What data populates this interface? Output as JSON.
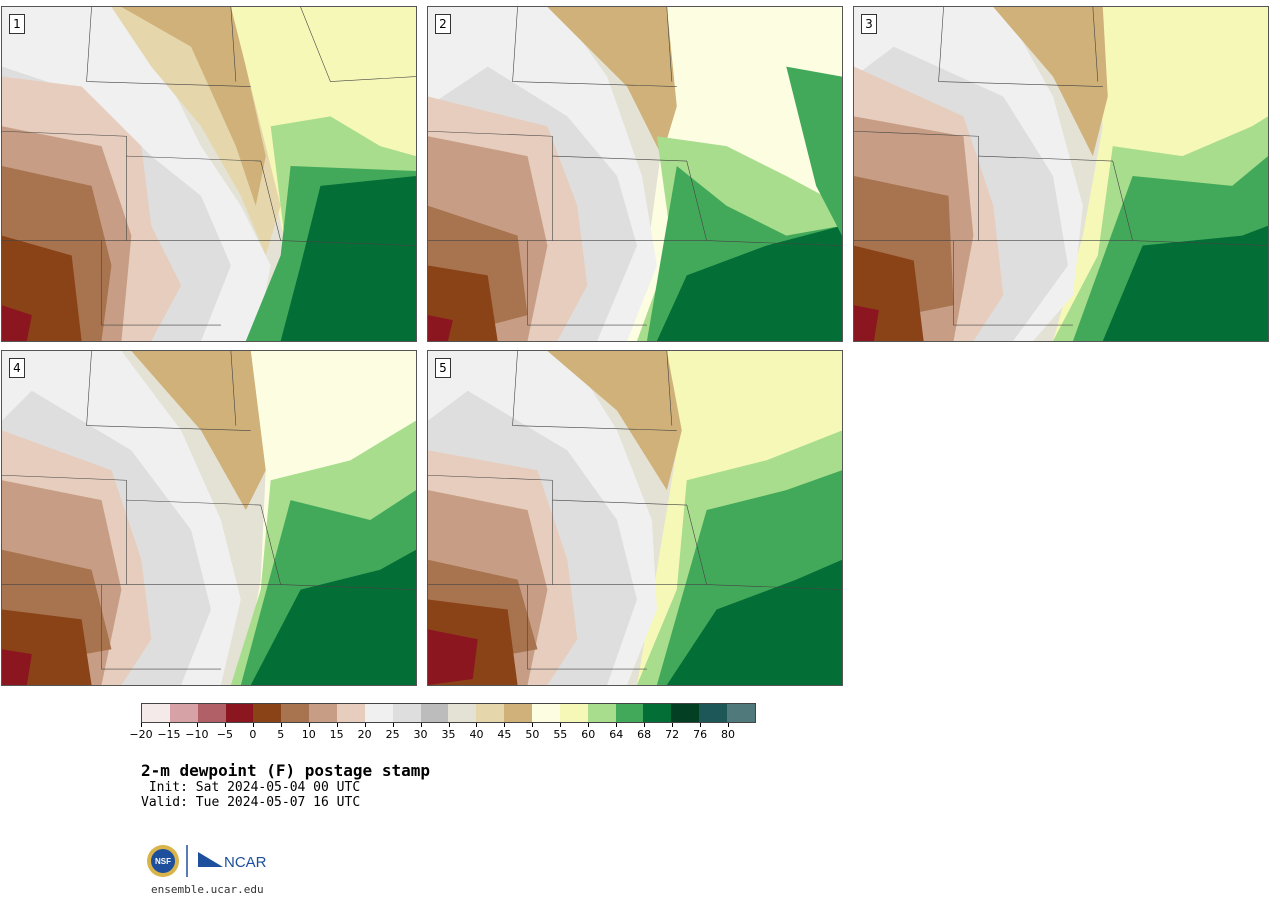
{
  "panels": [
    {
      "label": "1"
    },
    {
      "label": "2"
    },
    {
      "label": "3"
    },
    {
      "label": "4"
    },
    {
      "label": "5"
    }
  ],
  "colorbar": {
    "colors": [
      "#f4eaea",
      "#d6a2a6",
      "#b06066",
      "#8b1620",
      "#8a4316",
      "#a8734f",
      "#c79e85",
      "#e6cdbd",
      "#f0f0f0",
      "#dedede",
      "#bcbcbc",
      "#e4e2d5",
      "#e6d6ac",
      "#cfb179",
      "#fdfde2",
      "#f6f8b7",
      "#a7dd8d",
      "#43a95a",
      "#036f37",
      "#033f22",
      "#1d5757",
      "#50797b"
    ],
    "ticks": [
      "-20",
      "-15",
      "-10",
      "-5",
      "0",
      "5",
      "10",
      "15",
      "20",
      "25",
      "30",
      "35",
      "40",
      "45",
      "50",
      "55",
      "60",
      "64",
      "68",
      "72",
      "76",
      "80"
    ]
  },
  "title": "2-m dewpoint (F) postage stamp",
  "init": " Init: Sat 2024-05-04 00 UTC",
  "valid": "Valid: Tue 2024-05-07 16 UTC",
  "logo": {
    "nsf_text": "NSF",
    "ncar_text": "NCAR"
  },
  "url": "ensemble.ucar.edu"
}
